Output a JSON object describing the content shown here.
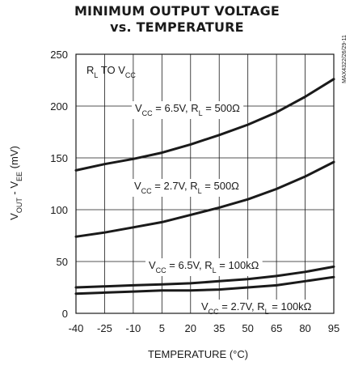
{
  "chart_data": {
    "type": "line",
    "title_line1": "MINIMUM OUTPUT VOLTAGE",
    "title_line2": "vs. TEMPERATURE",
    "xlabel": "TEMPERATURE (°C)",
    "ylabel": "V_OUT - V_EE (mV)",
    "xlim": [
      -40,
      95
    ],
    "ylim": [
      0,
      250
    ],
    "xticks": [
      -40,
      -25,
      -10,
      5,
      20,
      35,
      50,
      65,
      80,
      95
    ],
    "yticks": [
      0,
      50,
      100,
      150,
      200,
      250
    ],
    "grid": true,
    "watermark": "MAX4322/26/29-11",
    "header_label": "R_L TO V_CC",
    "series": [
      {
        "name": "V_CC = 6.5V, R_L = 500Ω",
        "x": [
          -40,
          -25,
          -10,
          5,
          20,
          35,
          50,
          65,
          80,
          95
        ],
        "values": [
          138,
          144,
          149,
          155,
          163,
          172,
          182,
          194,
          209,
          226
        ]
      },
      {
        "name": "V_CC = 2.7V, R_L = 500Ω",
        "x": [
          -40,
          -25,
          -10,
          5,
          20,
          35,
          50,
          65,
          80,
          95
        ],
        "values": [
          74,
          78,
          83,
          88,
          95,
          102,
          110,
          120,
          132,
          146
        ]
      },
      {
        "name": "V_CC = 6.5V, R_L = 100kΩ",
        "x": [
          -40,
          -25,
          -10,
          5,
          20,
          35,
          50,
          65,
          80,
          95
        ],
        "values": [
          25,
          26,
          27,
          28,
          29,
          31,
          33,
          36,
          40,
          45
        ]
      },
      {
        "name": "V_CC = 2.7V, R_L = 100kΩ",
        "x": [
          -40,
          -25,
          -10,
          5,
          20,
          35,
          50,
          65,
          80,
          95
        ],
        "values": [
          19,
          20,
          21,
          22,
          22,
          23,
          25,
          27,
          31,
          35
        ]
      }
    ]
  }
}
